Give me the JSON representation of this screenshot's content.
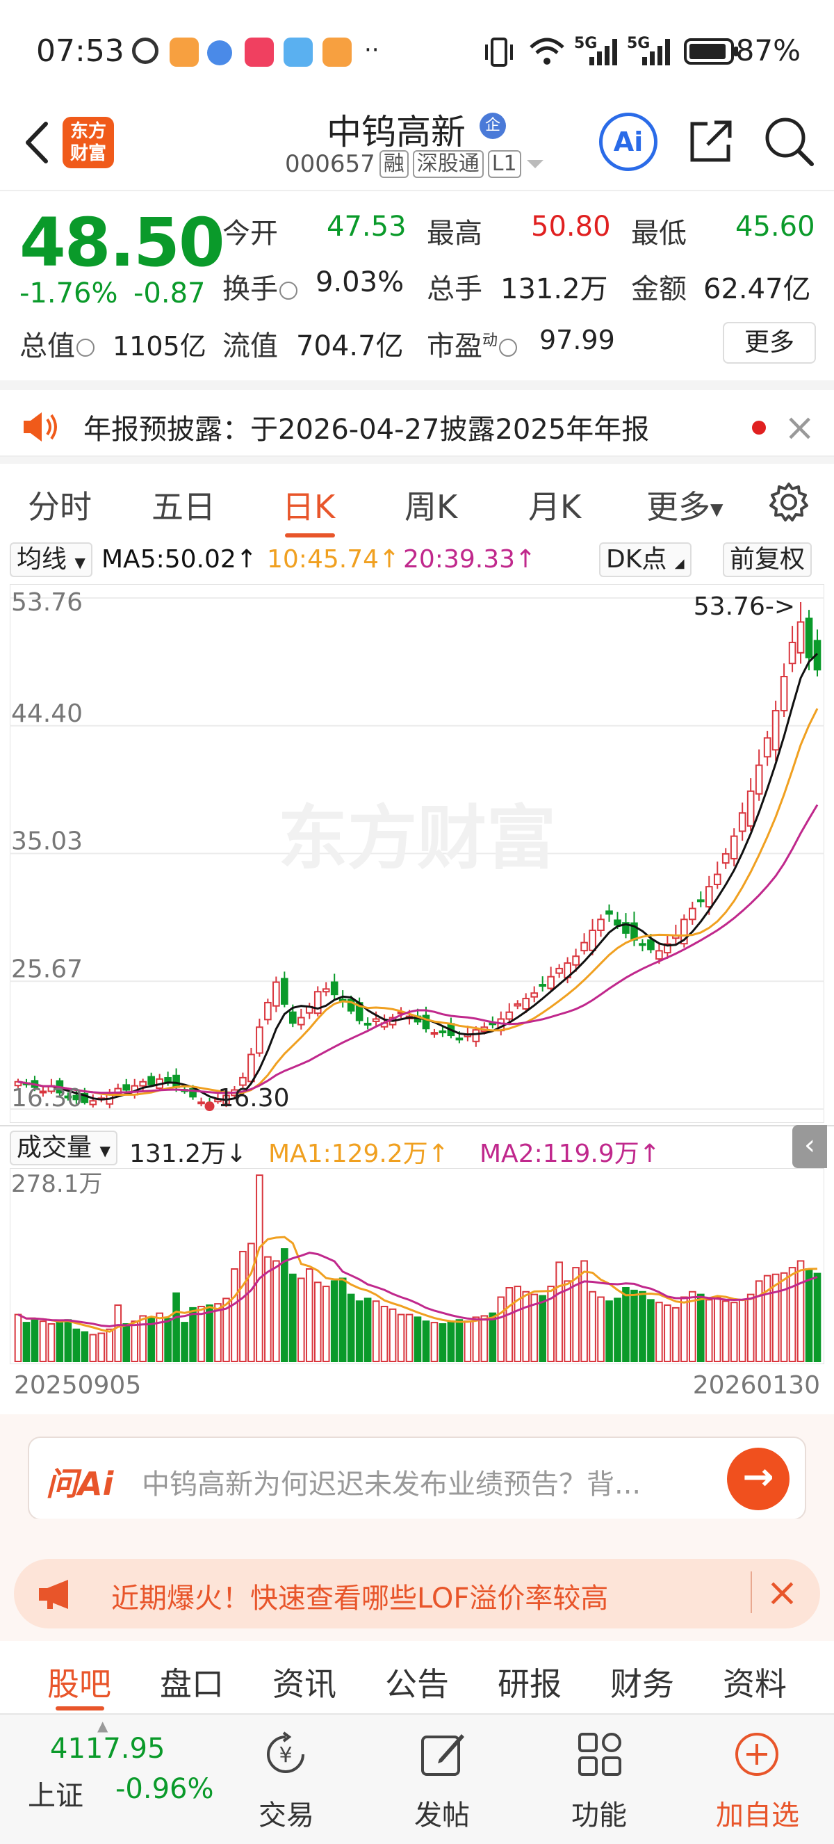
{
  "status_bar": {
    "time": "07:53",
    "battery": "87%",
    "network_1": "5G",
    "network_2": "5G"
  },
  "header": {
    "brand_logo": "东方\n财富",
    "stock_name": "中钨高新",
    "name_badge": "企",
    "stock_code": "000657",
    "tags": [
      "融",
      "深股通",
      "L1"
    ],
    "ai_label": "Ai"
  },
  "quote": {
    "price": "48.50",
    "change_pct": "-1.76%",
    "change": "-0.87",
    "open_label": "今开",
    "open": "47.53",
    "high_label": "最高",
    "high": "50.80",
    "low_label": "最低",
    "low": "45.60",
    "turnover_label": "换手",
    "turnover": "9.03%",
    "volume_label": "总手",
    "volume": "131.2万",
    "amount_label": "金额",
    "amount": "62.47亿",
    "mktcap_label": "总值",
    "mktcap": "1105亿",
    "float_label": "流值",
    "float": "704.7亿",
    "pe_label": "市盈",
    "pe_sup": "动",
    "pe": "97.99",
    "more_label": "更多"
  },
  "notice": {
    "text": "年报预披露：于2026-04-27披露2025年年报"
  },
  "period_tabs": {
    "items": [
      "分时",
      "五日",
      "日K",
      "周K",
      "月K",
      "更多"
    ],
    "active": 2
  },
  "ma_row": {
    "indicator_select": "均线",
    "ma5": "MA5:50.02↑",
    "ma10": "10:45.74↑",
    "ma20": "20:39.33↑",
    "dk_label": "DK点",
    "adjust_label": "前复权"
  },
  "colors": {
    "up": "#d9363e",
    "down": "#0a9a2a",
    "ma5": "#111111",
    "ma10": "#f0a020",
    "ma20": "#c0288c",
    "accent": "#e8552a"
  },
  "chart_data": [
    {
      "type": "candlestick",
      "y_ticks": [
        "53.76",
        "44.40",
        "35.03",
        "25.67",
        "16.30"
      ],
      "ylim": [
        16.3,
        53.76
      ],
      "max_annotation": "53.76->",
      "min_annotation": "16.30",
      "watermark": "东方财富",
      "x_start": "20250905",
      "x_end": "20260130",
      "close": [
        18.3,
        18.1,
        17.9,
        17.6,
        18.0,
        17.5,
        17.2,
        17.0,
        16.8,
        16.9,
        17.1,
        17.5,
        17.8,
        17.7,
        18.0,
        18.3,
        18.1,
        18.5,
        18.3,
        17.9,
        17.6,
        17.2,
        16.8,
        16.6,
        17.0,
        17.3,
        17.7,
        18.6,
        20.3,
        22.3,
        24.1,
        25.6,
        24.0,
        22.6,
        23.0,
        23.8,
        24.9,
        25.1,
        24.7,
        24.2,
        23.5,
        22.8,
        22.5,
        22.9,
        22.6,
        23.0,
        23.4,
        23.1,
        22.7,
        22.2,
        21.9,
        22.0,
        21.7,
        21.4,
        21.8,
        22.1,
        22.3,
        22.5,
        22.9,
        23.4,
        24.0,
        24.4,
        24.8,
        25.4,
        26.0,
        26.6,
        27.0,
        27.5,
        28.5,
        29.4,
        30.2,
        30.6,
        29.8,
        29.2,
        28.7,
        28.4,
        28.0,
        27.9,
        28.4,
        29.0,
        30.2,
        31.0,
        31.6,
        32.6,
        33.5,
        35.0,
        36.3,
        38.0,
        39.6,
        41.5,
        43.5,
        45.5,
        48.0,
        50.5,
        52.0,
        49.4,
        48.5
      ],
      "series": [
        {
          "name": "MA5",
          "values": []
        },
        {
          "name": "MA10",
          "values": []
        },
        {
          "name": "MA20",
          "values": []
        }
      ]
    },
    {
      "type": "bar",
      "title": "成交量",
      "y_top_label": "278.1万",
      "ylim": [
        0,
        278.1
      ],
      "values": [
        70,
        58,
        64,
        60,
        56,
        60,
        62,
        48,
        44,
        40,
        42,
        48,
        84,
        56,
        60,
        68,
        66,
        72,
        64,
        102,
        58,
        80,
        82,
        84,
        86,
        94,
        138,
        164,
        176,
        278,
        156,
        150,
        168,
        130,
        124,
        138,
        118,
        112,
        120,
        124,
        100,
        90,
        94,
        90,
        82,
        78,
        70,
        70,
        66,
        60,
        58,
        56,
        60,
        62,
        60,
        66,
        68,
        72,
        96,
        110,
        112,
        104,
        100,
        98,
        112,
        148,
        120,
        140,
        150,
        104,
        96,
        90,
        94,
        110,
        106,
        104,
        92,
        88,
        84,
        80,
        96,
        104,
        100,
        92,
        96,
        90,
        88,
        92,
        100,
        120,
        128,
        130,
        132,
        140,
        150,
        138,
        131.2
      ],
      "ma1_label": "MA1:129.2万↑",
      "ma2_label": "MA2:119.9万↑",
      "current_label": "131.2万↓"
    }
  ],
  "vol_row": {
    "indicator_select": "成交量",
    "current": "131.2万↓",
    "ma1": "MA1:129.2万↑",
    "ma2": "MA2:119.9万↑"
  },
  "ai_ask": {
    "logo": "问Ai",
    "question": "中钨高新为何迟迟未发布业绩预告？背..."
  },
  "promo": {
    "text": "近期爆火！快速查看哪些LOF溢价率较高"
  },
  "bottom_tabs": {
    "items": [
      "股吧",
      "盘口",
      "资讯",
      "公告",
      "研报",
      "财务",
      "资料"
    ],
    "active": 0
  },
  "bottom_bar": {
    "index_value": "4117.95",
    "index_name": "上证",
    "index_change": "-0.96%",
    "trade_label": "交易",
    "post_label": "发帖",
    "function_label": "功能",
    "add_label": "加自选"
  }
}
